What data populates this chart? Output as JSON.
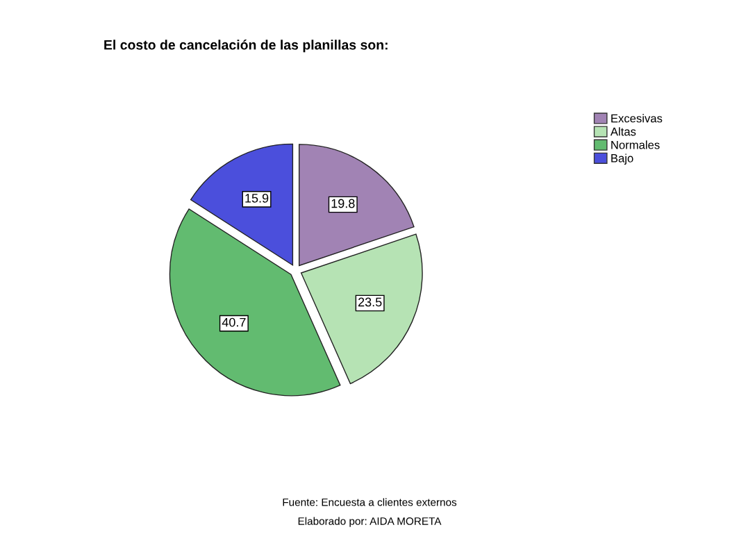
{
  "chart_data": {
    "type": "pie",
    "title": "El costo de cancelación de las planillas son:",
    "categories": [
      "Excesivas",
      "Altas",
      "Normales",
      "Bajo"
    ],
    "values": [
      19.8,
      23.5,
      40.7,
      15.9
    ],
    "colors": [
      "#a183b4",
      "#b6e3b4",
      "#62bb70",
      "#4b4fdc"
    ],
    "data_labels": true,
    "legend": "top right",
    "annotations": [
      "Fuente: Encuesta a clientes externos",
      "Elaborado por: AIDA MORETA"
    ]
  }
}
